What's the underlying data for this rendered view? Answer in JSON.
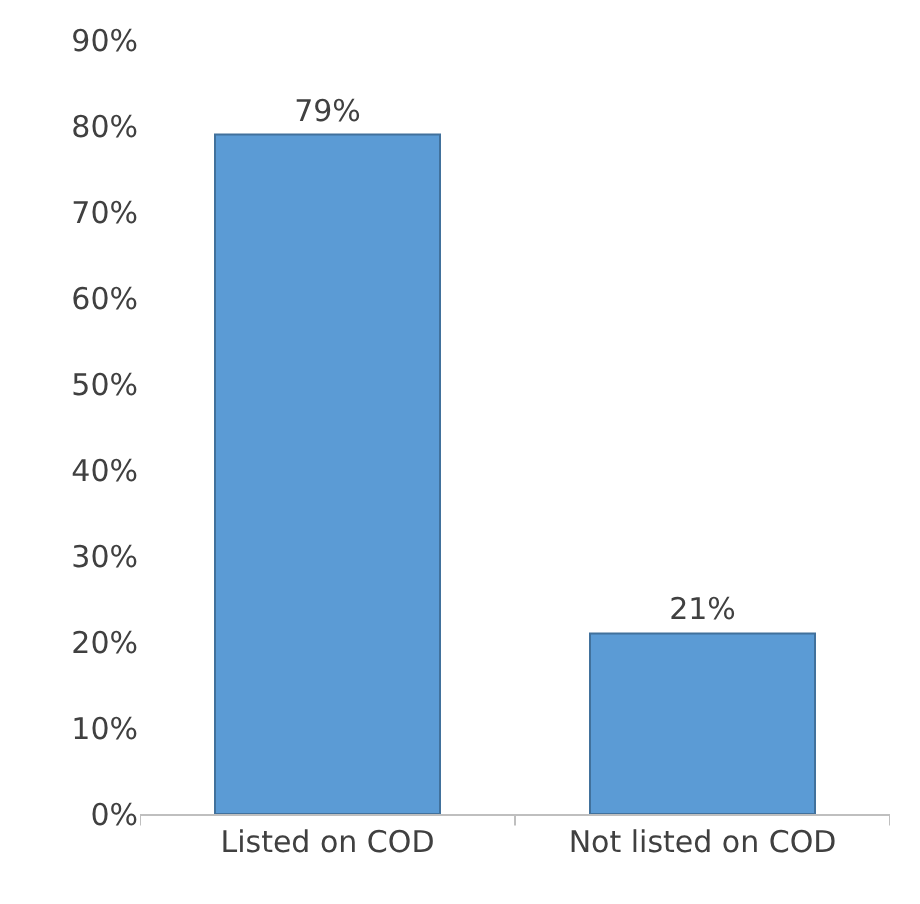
{
  "chart_data": {
    "type": "bar",
    "categories": [
      "Listed on COD",
      "Not listed on COD"
    ],
    "values": [
      79,
      21
    ],
    "color": "#5b9bd5",
    "value_labels": [
      "79%",
      "21%"
    ],
    "ylim": [
      0,
      90
    ],
    "yticks": [
      {
        "value": 0,
        "label": "0%"
      },
      {
        "value": 10,
        "label": "10%"
      },
      {
        "value": 20,
        "label": "20%"
      },
      {
        "value": 30,
        "label": "30%"
      },
      {
        "value": 40,
        "label": "40%"
      },
      {
        "value": 50,
        "label": "50%"
      },
      {
        "value": 60,
        "label": "60%"
      },
      {
        "value": 70,
        "label": "70%"
      },
      {
        "value": 80,
        "label": "80%"
      },
      {
        "value": 90,
        "label": "90%"
      }
    ],
    "legend": false
  }
}
